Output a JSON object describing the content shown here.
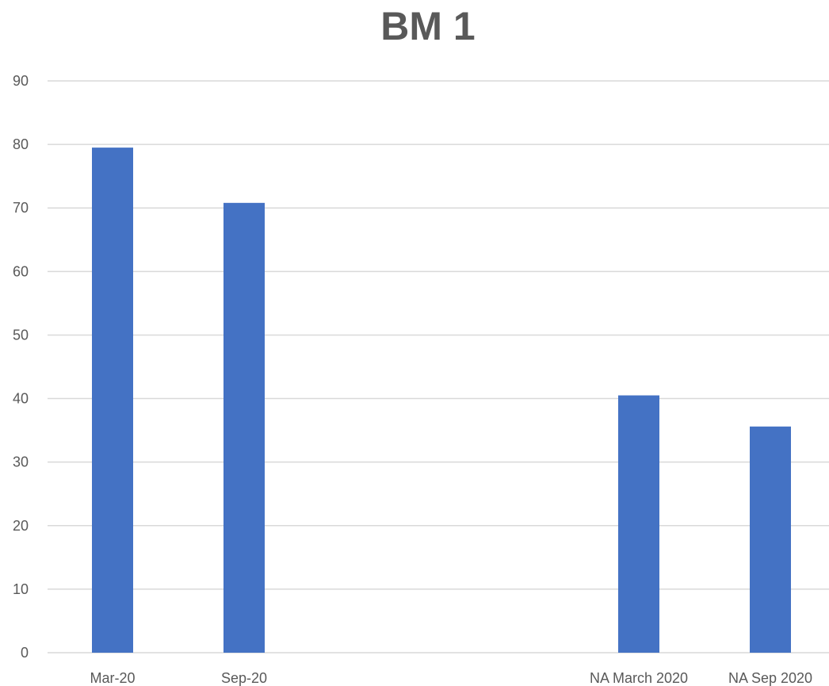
{
  "chart_data": {
    "type": "bar",
    "title": "BM 1",
    "xlabel": "",
    "ylabel": "",
    "categories": [
      "Mar-20",
      "Sep-20",
      "",
      "",
      "NA March 2020",
      "NA Sep 2020"
    ],
    "values": [
      79.5,
      70.8,
      null,
      null,
      40.5,
      35.6
    ],
    "ylim": [
      0,
      90
    ],
    "yticks": [
      0,
      10,
      20,
      30,
      40,
      50,
      60,
      70,
      80,
      90
    ],
    "grid": true,
    "legend": "none",
    "bar_color": "#4472C4",
    "grid_color": "#D9D9D9",
    "text_color": "#595959"
  }
}
